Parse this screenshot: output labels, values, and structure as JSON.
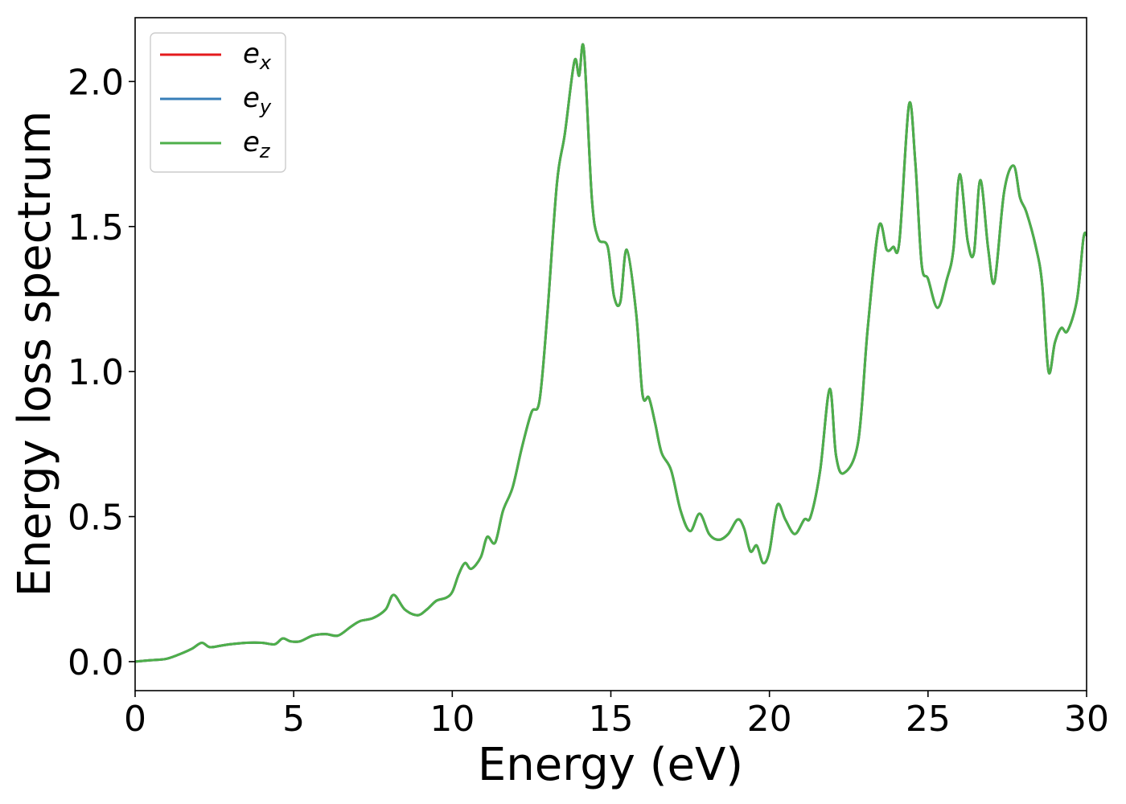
{
  "chart_data": {
    "type": "line",
    "title": "",
    "xlabel": "Energy (eV)",
    "ylabel": "Energy loss spectrum",
    "xlim": [
      0,
      30
    ],
    "ylim": [
      -0.1,
      2.22
    ],
    "xticks": [
      0,
      5,
      10,
      15,
      20,
      25,
      30
    ],
    "xtick_labels": [
      "0",
      "5",
      "10",
      "15",
      "20",
      "25",
      "30"
    ],
    "yticks": [
      0.0,
      0.5,
      1.0,
      1.5,
      2.0
    ],
    "ytick_labels": [
      "0.0",
      "0.5",
      "1.0",
      "1.5",
      "2.0"
    ],
    "grid": false,
    "legend_position": "top-left",
    "series": [
      {
        "name": "e",
        "subscript": "x",
        "color": "#e41a1c"
      },
      {
        "name": "e",
        "subscript": "y",
        "color": "#377eb8"
      },
      {
        "name": "e",
        "subscript": "z",
        "color": "#4daf4a"
      }
    ],
    "x": [
      0,
      0.5,
      1.0,
      1.5,
      1.8,
      2.1,
      2.35,
      2.7,
      3.0,
      3.5,
      4.0,
      4.4,
      4.65,
      4.9,
      5.2,
      5.6,
      6.0,
      6.4,
      6.8,
      7.1,
      7.5,
      7.9,
      8.15,
      8.5,
      8.9,
      9.2,
      9.5,
      9.8,
      10.0,
      10.2,
      10.4,
      10.6,
      10.9,
      11.1,
      11.35,
      11.6,
      11.9,
      12.2,
      12.5,
      12.75,
      13.0,
      13.3,
      13.55,
      13.85,
      14.0,
      14.15,
      14.4,
      14.6,
      14.9,
      15.1,
      15.3,
      15.5,
      15.8,
      16.0,
      16.2,
      16.4,
      16.6,
      16.9,
      17.2,
      17.5,
      17.8,
      18.1,
      18.4,
      18.7,
      19.0,
      19.2,
      19.4,
      19.6,
      19.8,
      20.0,
      20.25,
      20.5,
      20.8,
      21.1,
      21.3,
      21.6,
      21.9,
      22.1,
      22.35,
      22.8,
      23.1,
      23.45,
      23.7,
      23.9,
      24.1,
      24.4,
      24.6,
      24.8,
      25.0,
      25.3,
      25.6,
      25.8,
      26.0,
      26.25,
      26.45,
      26.65,
      26.9,
      27.1,
      27.4,
      27.7,
      27.9,
      28.1,
      28.4,
      28.6,
      28.8,
      29.0,
      29.2,
      29.4,
      29.7,
      29.9,
      30.0
    ],
    "values": [
      0.0,
      0.005,
      0.01,
      0.03,
      0.045,
      0.065,
      0.05,
      0.055,
      0.06,
      0.065,
      0.065,
      0.06,
      0.08,
      0.07,
      0.07,
      0.09,
      0.095,
      0.09,
      0.12,
      0.14,
      0.15,
      0.18,
      0.23,
      0.18,
      0.16,
      0.18,
      0.21,
      0.22,
      0.24,
      0.3,
      0.34,
      0.32,
      0.36,
      0.43,
      0.41,
      0.52,
      0.6,
      0.74,
      0.86,
      0.9,
      1.2,
      1.65,
      1.82,
      2.07,
      2.02,
      2.11,
      1.6,
      1.46,
      1.43,
      1.26,
      1.24,
      1.42,
      1.2,
      0.92,
      0.91,
      0.82,
      0.72,
      0.66,
      0.52,
      0.45,
      0.51,
      0.44,
      0.42,
      0.44,
      0.49,
      0.46,
      0.38,
      0.4,
      0.34,
      0.38,
      0.54,
      0.49,
      0.44,
      0.49,
      0.5,
      0.66,
      0.94,
      0.71,
      0.65,
      0.76,
      1.15,
      1.5,
      1.42,
      1.43,
      1.45,
      1.92,
      1.72,
      1.37,
      1.32,
      1.22,
      1.32,
      1.42,
      1.68,
      1.45,
      1.41,
      1.66,
      1.42,
      1.31,
      1.62,
      1.71,
      1.6,
      1.55,
      1.43,
      1.3,
      1.0,
      1.1,
      1.15,
      1.14,
      1.25,
      1.46,
      1.47
    ]
  }
}
